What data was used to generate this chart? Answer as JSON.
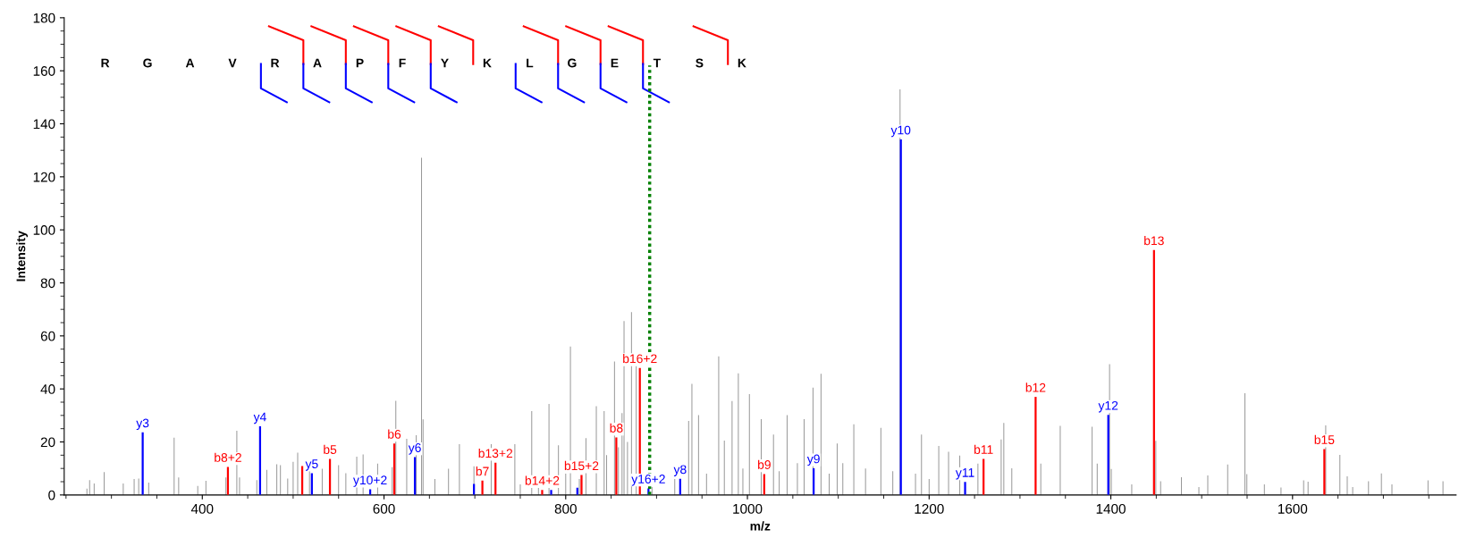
{
  "chart_data": {
    "type": "bar",
    "xlabel": "m/z",
    "ylabel": "Intensity",
    "xlim": [
      248,
      1780
    ],
    "xticks": [
      400,
      600,
      800,
      1000,
      1200,
      1400,
      1600
    ],
    "ylim": [
      0,
      180
    ],
    "yticks": [
      0,
      20,
      40,
      60,
      80,
      100,
      120,
      140,
      160,
      180
    ],
    "grid": false,
    "legend": false,
    "series": [
      {
        "color": "#999999",
        "x": [
          273,
          276,
          281,
          292,
          313,
          325,
          330,
          341,
          369,
          374,
          395,
          404,
          426,
          438,
          441,
          460,
          471,
          482,
          486,
          494,
          500,
          505,
          518,
          532,
          550,
          558,
          570,
          577,
          593,
          609,
          613,
          625,
          635.5,
          641.3,
          643,
          656,
          671,
          683,
          699,
          718,
          744,
          750,
          762.6,
          770,
          781.6,
          792,
          800,
          805.2,
          815,
          822.3,
          833.7,
          842.3,
          845,
          853.7,
          858,
          862,
          864.2,
          868,
          872.4,
          877.6,
          895,
          906.8,
          920,
          935.3,
          938.9,
          946.2,
          955,
          968.4,
          974.6,
          983.1,
          990,
          995,
          1002.2,
          1015.2,
          1028.7,
          1035,
          1043.7,
          1055,
          1062.4,
          1072.2,
          1081,
          1090,
          1098.8,
          1105,
          1117.1,
          1130,
          1146.9,
          1160,
          1168,
          1185,
          1191.6,
          1200,
          1210.6,
          1221.4,
          1233.7,
          1253.7,
          1279.3,
          1282.2,
          1291,
          1322.9,
          1344.3,
          1379.4,
          1385,
          1398.6,
          1400.5,
          1423,
          1449.5,
          1454.8,
          1477.7,
          1496.9,
          1506.7,
          1528.6,
          1547.6,
          1549.7,
          1569,
          1587.3,
          1612.2,
          1617.1,
          1636.5,
          1652.1,
          1660.2,
          1666.2,
          1683.6,
          1697.8,
          1709.4,
          1749.1,
          1765.6
        ],
        "values": [
          2.4,
          5.6,
          4.3,
          8.6,
          4.3,
          6.0,
          6.2,
          4.7,
          21.6,
          6.6,
          3.4,
          5.3,
          6.6,
          24.2,
          6.6,
          5.6,
          9.5,
          11.6,
          11.2,
          6.2,
          12.5,
          16.0,
          9.2,
          9.9,
          11.2,
          8.2,
          14.4,
          15.3,
          11.8,
          10.5,
          35.5,
          21.2,
          22.5,
          127.2,
          28.5,
          6.0,
          9.9,
          19.2,
          10.8,
          19.2,
          19.2,
          4.0,
          31.6,
          3.0,
          34.3,
          18.7,
          8.0,
          56.0,
          6.0,
          21.4,
          33.5,
          31.6,
          15.0,
          50.3,
          18.0,
          30.9,
          65.6,
          20.0,
          69.0,
          48.7,
          3.0,
          null,
          6.0,
          27.9,
          41.9,
          30.1,
          8.0,
          52.3,
          20.5,
          35.4,
          45.9,
          10.0,
          38.0,
          28.6,
          22.8,
          9.0,
          30.1,
          12.0,
          28.6,
          40.5,
          45.7,
          8.0,
          19.4,
          12.0,
          26.7,
          10.0,
          25.3,
          9.0,
          153.0,
          8.0,
          22.8,
          6.0,
          18.5,
          16.3,
          14.9,
          11.8,
          20.9,
          27.2,
          10.1,
          11.8,
          26.1,
          25.7,
          11.8,
          49.3,
          9.8,
          4.0,
          20.4,
          5.2,
          6.7,
          3.0,
          7.4,
          11.5,
          38.4,
          7.9,
          4.0,
          2.8,
          5.5,
          5.0,
          26.2,
          15.1,
          7.0,
          3.0,
          5.2,
          8.1,
          4.0,
          5.5,
          5.2
        ]
      },
      {
        "color": "#ff0000",
        "x": [
          428.2,
          510,
          540.5,
          611.3,
          708.3,
          722.7,
          774.1,
          817.4,
          855.7,
          881.6,
          1018.5,
          1259.9,
          1317.2,
          1447.5,
          1635
        ],
        "values": [
          10.6,
          10.9,
          13.6,
          19.4,
          5.4,
          12.2,
          1.9,
          7.5,
          21.7,
          47.9,
          7.9,
          13.6,
          37.0,
          92.4,
          17.3
        ],
        "value_labels": [
          "b8+2",
          null,
          "b5",
          "b6",
          "b7",
          "b13+2",
          "b14+2",
          "b15+2",
          "b8",
          "b16+2",
          "b9",
          "b11",
          "b12",
          "b13",
          "b15"
        ]
      },
      {
        "color": "#0000ff",
        "x": [
          334.4,
          463.6,
          520.6,
          584.8,
          634,
          699,
          784,
          812.8,
          891.1,
          926,
          1072.9,
          1168.9,
          1239.6,
          1397.2
        ],
        "values": [
          23.6,
          25.9,
          8.2,
          2.1,
          14.3,
          4.2,
          1.9,
          2.7,
          2.5,
          6.1,
          10.1,
          134.1,
          4.9,
          30.2
        ],
        "value_labels": [
          "y3",
          "y4",
          "y5",
          "y10+2",
          "y6",
          null,
          null,
          null,
          "y16+2",
          "y8",
          "y9",
          "y10",
          "y11",
          "y12"
        ]
      }
    ],
    "ref_lines": [
      {
        "axis": "x",
        "value": 892.4,
        "color": "#008000",
        "line_style": "dotted"
      }
    ],
    "annotations": [
      "R",
      "G",
      "A",
      "V",
      "R",
      "A",
      "P",
      "F",
      "Y",
      "K",
      "L",
      "G",
      "E",
      "T",
      "S",
      "K"
    ]
  }
}
